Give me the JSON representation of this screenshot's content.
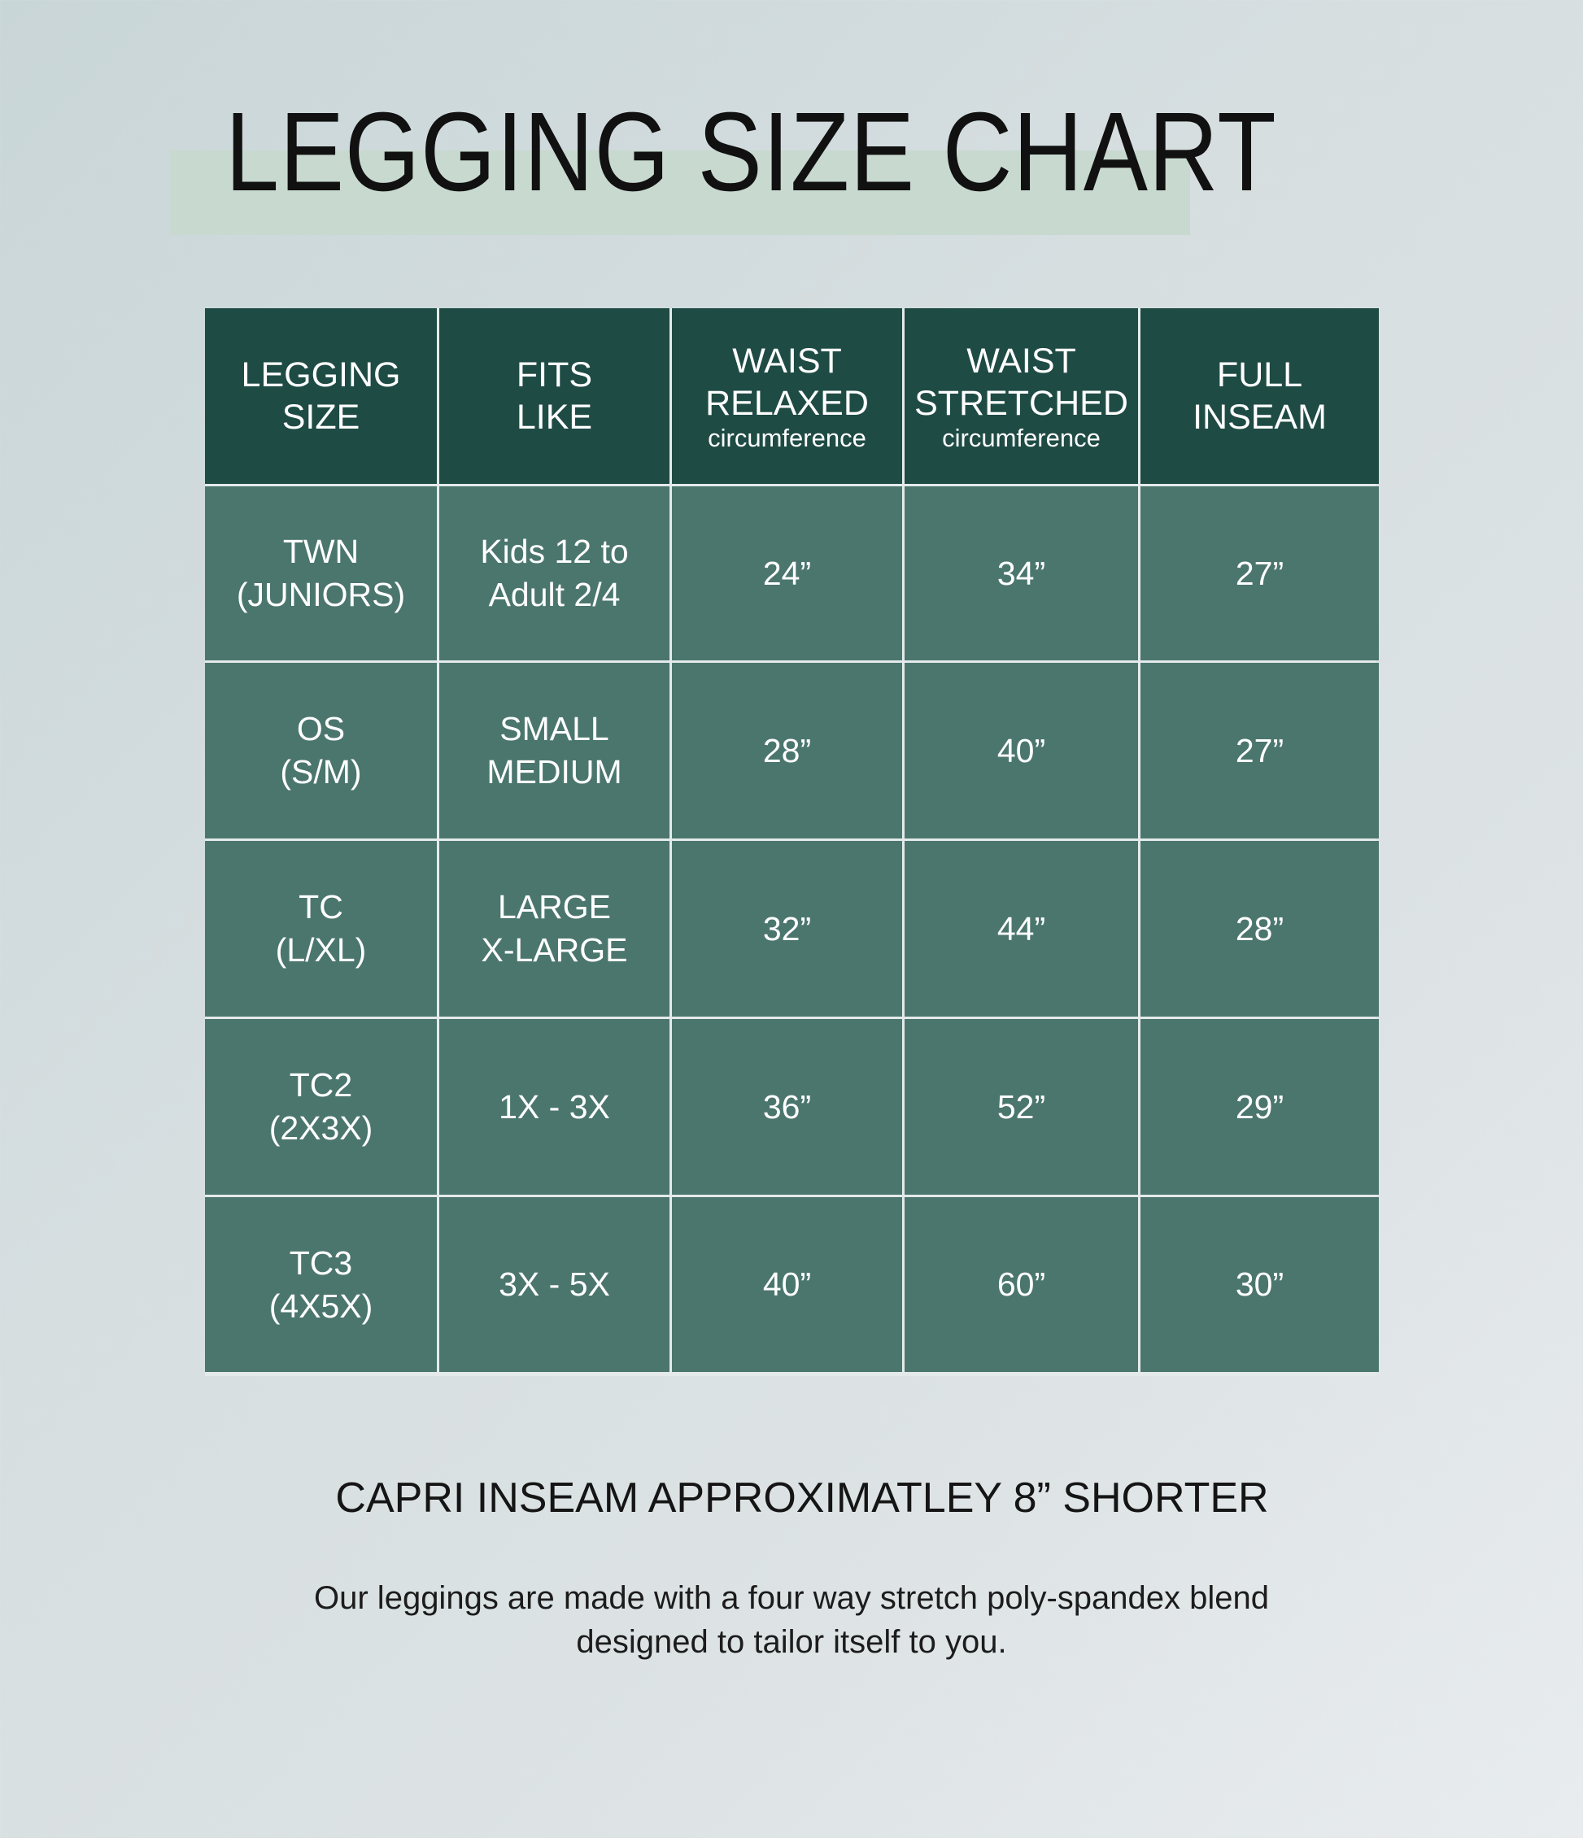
{
  "title": "LEGGING SIZE CHART",
  "colors": {
    "header_bg": "#1f4b45",
    "cell_bg": "#4b766e",
    "highlight": "#c8d9cf"
  },
  "table": {
    "headers": [
      {
        "line1": "LEGGING",
        "line2": "SIZE",
        "sub": ""
      },
      {
        "line1": "FITS",
        "line2": "LIKE",
        "sub": ""
      },
      {
        "line1": "WAIST",
        "line2": "RELAXED",
        "sub": "circumference"
      },
      {
        "line1": "WAIST",
        "line2": "STRETCHED",
        "sub": "circumference"
      },
      {
        "line1": "FULL",
        "line2": "INSEAM",
        "sub": ""
      }
    ],
    "rows": [
      {
        "size1": "TWN",
        "size2": "(JUNIORS)",
        "fits1": "Kids 12 to",
        "fits2": "Adult 2/4",
        "relaxed": "24”",
        "stretched": "34”",
        "inseam": "27”"
      },
      {
        "size1": "OS",
        "size2": "(S/M)",
        "fits1": "SMALL",
        "fits2": "MEDIUM",
        "relaxed": "28”",
        "stretched": "40”",
        "inseam": "27”"
      },
      {
        "size1": "TC",
        "size2": "(L/XL)",
        "fits1": "LARGE",
        "fits2": "X-LARGE",
        "relaxed": "32”",
        "stretched": "44”",
        "inseam": "28”"
      },
      {
        "size1": "TC2",
        "size2": "(2X3X)",
        "fits1": "1X - 3X",
        "fits2": "",
        "relaxed": "36”",
        "stretched": "52”",
        "inseam": "29”"
      },
      {
        "size1": "TC3",
        "size2": "(4X5X)",
        "fits1": "3X - 5X",
        "fits2": "",
        "relaxed": "40”",
        "stretched": "60”",
        "inseam": "30”"
      }
    ]
  },
  "capri_note": "CAPRI INSEAM APPROXIMATLEY 8” SHORTER",
  "description": {
    "line1": "Our leggings are made with a four way stretch poly-spandex blend",
    "line2": "designed to tailor itself to you."
  }
}
